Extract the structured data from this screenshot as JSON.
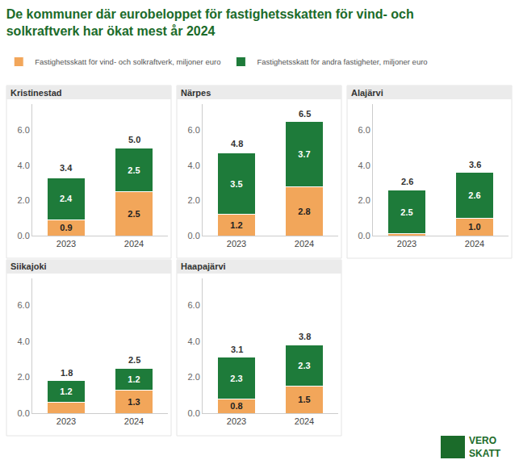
{
  "title": [
    "De kommuner där eurobeloppet för fastighetsskatten för vind- och",
    "solkraftverk har ökat mest år 2024"
  ],
  "legend": "top-left",
  "logo": [
    "VERO",
    "SKATT"
  ],
  "chart_data": [
    {
      "type": "bar",
      "title": "Kristinestad",
      "stacked": true,
      "data_labels": true,
      "grid": false,
      "categories": [
        "2023",
        "2024"
      ],
      "series": [
        {
          "name": "Fastighetsskatt för vind- och solkraftverk, miljoner euro",
          "color": "#f2a65a",
          "values": [
            0.9,
            2.5
          ],
          "value_labels": [
            "0.9",
            "2.5"
          ]
        },
        {
          "name": "Fastighetsskatt för andra fastigheter, miljoner euro",
          "color": "#1e7b3a",
          "values": [
            2.4,
            2.5
          ],
          "value_labels": [
            "2.4",
            "2.5"
          ]
        }
      ],
      "totals": [
        3.4,
        5
      ],
      "total_labels": [
        "3.4",
        "5.0"
      ],
      "ylim": [
        0,
        7.5
      ],
      "yticks": [
        {
          "value": 0,
          "label": "0.0"
        },
        {
          "value": 2,
          "label": "2.0"
        },
        {
          "value": 4,
          "label": "4.0"
        },
        {
          "value": 6,
          "label": "6.0"
        }
      ]
    },
    {
      "type": "bar",
      "title": "Närpes",
      "stacked": true,
      "data_labels": true,
      "grid": false,
      "categories": [
        "2023",
        "2024"
      ],
      "series": [
        {
          "name": "Fastighetsskatt för vind- och solkraftverk, miljoner euro",
          "color": "#f2a65a",
          "values": [
            1.2,
            2.8
          ],
          "value_labels": [
            "1.2",
            "2.8"
          ]
        },
        {
          "name": "Fastighetsskatt för andra fastigheter, miljoner euro",
          "color": "#1e7b3a",
          "values": [
            3.5,
            3.7
          ],
          "value_labels": [
            "3.5",
            "3.7"
          ]
        }
      ],
      "totals": [
        4.8,
        6.5
      ],
      "total_labels": [
        "4.8",
        "6.5"
      ],
      "ylim": [
        0,
        7.5
      ],
      "yticks": [
        {
          "value": 0,
          "label": "0.0"
        },
        {
          "value": 2,
          "label": "2.0"
        },
        {
          "value": 4,
          "label": "4.0"
        },
        {
          "value": 6,
          "label": "6.0"
        }
      ]
    },
    {
      "type": "bar",
      "title": "Alajärvi",
      "stacked": true,
      "data_labels": true,
      "grid": false,
      "categories": [
        "2023",
        "2024"
      ],
      "series": [
        {
          "name": "Fastighetsskatt för vind- och solkraftverk, miljoner euro",
          "color": "#f2a65a",
          "values": [
            0.1,
            1.0
          ],
          "value_labels": [
            null,
            "1.0"
          ]
        },
        {
          "name": "Fastighetsskatt för andra fastigheter, miljoner euro",
          "color": "#1e7b3a",
          "values": [
            2.5,
            2.6
          ],
          "value_labels": [
            "2.5",
            "2.6"
          ]
        }
      ],
      "totals": [
        2.6,
        3.6
      ],
      "total_labels": [
        "2.6",
        "3.6"
      ],
      "ylim": [
        0,
        7.5
      ],
      "yticks": [
        {
          "value": 0,
          "label": "0.0"
        },
        {
          "value": 2,
          "label": "2.0"
        },
        {
          "value": 4,
          "label": "4.0"
        },
        {
          "value": 6,
          "label": "6.0"
        }
      ]
    },
    {
      "type": "bar",
      "title": "Siikajoki",
      "stacked": true,
      "data_labels": true,
      "grid": false,
      "categories": [
        "2023",
        "2024"
      ],
      "series": [
        {
          "name": "Fastighetsskatt för vind- och solkraftverk, miljoner euro",
          "color": "#f2a65a",
          "values": [
            0.6,
            1.3
          ],
          "value_labels": [
            null,
            "1.3"
          ]
        },
        {
          "name": "Fastighetsskatt för andra fastigheter, miljoner euro",
          "color": "#1e7b3a",
          "values": [
            1.2,
            1.2
          ],
          "value_labels": [
            "1.2",
            "1.2"
          ]
        }
      ],
      "totals": [
        1.8,
        2.5
      ],
      "total_labels": [
        "1.8",
        "2.5"
      ],
      "ylim": [
        0,
        7.5
      ],
      "yticks": [
        {
          "value": 0,
          "label": "0.0"
        },
        {
          "value": 2,
          "label": "2.0"
        },
        {
          "value": 4,
          "label": "4.0"
        },
        {
          "value": 6,
          "label": "6.0"
        }
      ]
    },
    {
      "type": "bar",
      "title": "Haapajärvi",
      "stacked": true,
      "data_labels": true,
      "grid": false,
      "categories": [
        "2023",
        "2024"
      ],
      "series": [
        {
          "name": "Fastighetsskatt för vind- och solkraftverk, miljoner euro",
          "color": "#f2a65a",
          "values": [
            0.8,
            1.5
          ],
          "value_labels": [
            "0.8",
            "1.5"
          ]
        },
        {
          "name": "Fastighetsskatt för andra fastigheter, miljoner euro",
          "color": "#1e7b3a",
          "values": [
            2.3,
            2.3
          ],
          "value_labels": [
            "2.3",
            "2.3"
          ]
        }
      ],
      "totals": [
        3.1,
        3.8
      ],
      "total_labels": [
        "3.1",
        "3.8"
      ],
      "ylim": [
        0,
        7.5
      ],
      "yticks": [
        {
          "value": 0,
          "label": "0.0"
        },
        {
          "value": 2,
          "label": "2.0"
        },
        {
          "value": 4,
          "label": "4.0"
        },
        {
          "value": 6,
          "label": "6.0"
        }
      ]
    }
  ]
}
